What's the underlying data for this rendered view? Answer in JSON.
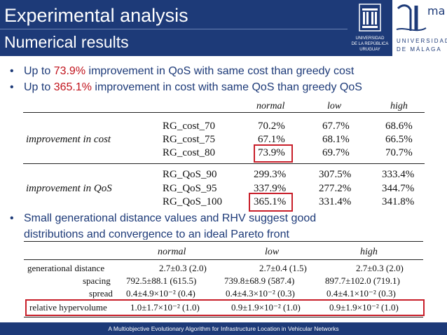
{
  "header": {
    "title": "Experimental analysis",
    "subtitle": "Numerical results"
  },
  "logos": {
    "udelar": {
      "line1": "UNIVERSIDAD",
      "line2": "DE LA REPÚBLICA",
      "line3": "URUGUAY"
    },
    "uma": {
      "mark": "ma",
      "line1": "UNIVERSIDAD",
      "line2": "DE MÁLAGA"
    }
  },
  "bullets": [
    {
      "marker": "•",
      "pre": "Up to ",
      "highlight": "73.9%",
      "post": " improvement in QoS with same cost than greedy cost"
    },
    {
      "marker": "•",
      "pre": "Up to ",
      "highlight": "365.1%",
      "post": " improvement in cost with same QoS than greedy QoS"
    },
    {
      "marker": "•",
      "line1": "Small generational distance values and RHV suggest good",
      "line2": "distributions and convergence to an ideal Pareto front"
    }
  ],
  "table1": {
    "columns": [
      "normal",
      "low",
      "high"
    ],
    "groups": [
      {
        "label": "improvement in cost",
        "rows": [
          {
            "name": "RG_cost_70",
            "values": [
              "70.2%",
              "67.7%",
              "68.6%"
            ]
          },
          {
            "name": "RG_cost_75",
            "values": [
              "67.1%",
              "68.1%",
              "66.5%"
            ]
          },
          {
            "name": "RG_cost_80",
            "values": [
              "73.9%",
              "69.7%",
              "70.7%"
            ]
          }
        ]
      },
      {
        "label": "improvement in QoS",
        "rows": [
          {
            "name": "RG_QoS_90",
            "values": [
              "299.3%",
              "307.5%",
              "333.4%"
            ]
          },
          {
            "name": "RG_QoS_95",
            "values": [
              "337.9%",
              "277.2%",
              "344.7%"
            ]
          },
          {
            "name": "RG_QoS_100",
            "values": [
              "365.1%",
              "331.4%",
              "341.8%"
            ]
          }
        ]
      }
    ]
  },
  "table2": {
    "columns": [
      "normal",
      "low",
      "high"
    ],
    "rows": [
      {
        "name": "generational distance",
        "values": [
          "2.7±0.3 (2.0)",
          "2.7±0.4 (1.5)",
          "2.7±0.3 (2.0)"
        ]
      },
      {
        "name": "spacing",
        "values": [
          "792.5±88.1 (615.5)",
          "739.8±68.9 (587.4)",
          "897.7±102.0 (719.1)"
        ]
      },
      {
        "name": "spread",
        "values": [
          "0.4±4.9×10⁻² (0.4)",
          "0.4±4.3×10⁻² (0.3)",
          "0.4±4.1×10⁻² (0.3)"
        ]
      },
      {
        "name": "relative hypervolume",
        "values": [
          "1.0±1.7×10⁻² (1.0)",
          "0.9±1.9×10⁻² (1.0)",
          "0.9±1.9×10⁻² (1.0)"
        ]
      }
    ]
  },
  "footer": {
    "text": "A Multiobjective Evolutionary Algorithm for Infrastructure Location in Vehicular Networks"
  },
  "colors": {
    "header_bg": "#1d3a78",
    "highlight": "#c0121b",
    "box": "#c81f2a"
  }
}
